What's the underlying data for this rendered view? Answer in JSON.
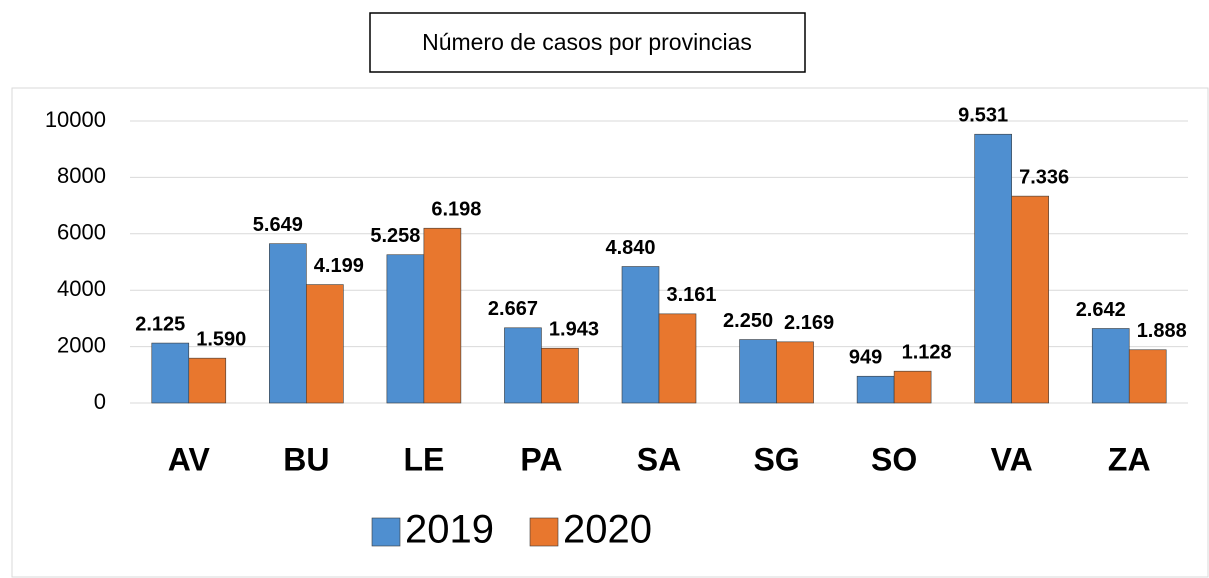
{
  "chart_data": {
    "type": "bar",
    "title": "Número de casos por provincias",
    "categories": [
      "AV",
      "BU",
      "LE",
      "PA",
      "SA",
      "SG",
      "SO",
      "VA",
      "ZA"
    ],
    "series": [
      {
        "name": "2019",
        "color": "#4f8fd0",
        "values": [
          2125,
          5649,
          5258,
          2667,
          4840,
          2250,
          949,
          9531,
          2642
        ],
        "value_labels": [
          "2.125",
          "5.649",
          "5.258",
          "2.667",
          "4.840",
          "2.250",
          "949",
          "9.531",
          "2.642"
        ]
      },
      {
        "name": "2020",
        "color": "#e8772e",
        "values": [
          1590,
          4199,
          6198,
          1943,
          3161,
          2169,
          1128,
          7336,
          1888
        ],
        "value_labels": [
          "1.590",
          "4.199",
          "6.198",
          "1.943",
          "3.161",
          "2.169",
          "1.128",
          "7.336",
          "1.888"
        ]
      }
    ],
    "ylim": [
      0,
      10000
    ],
    "yticks": [
      0,
      2000,
      4000,
      6000,
      8000,
      10000
    ],
    "grid": true,
    "legend": "bottom"
  }
}
